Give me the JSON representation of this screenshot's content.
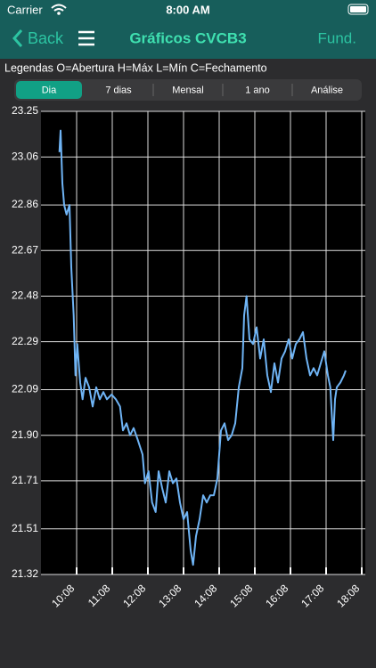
{
  "status": {
    "carrier": "Carrier",
    "time": "8:00 AM"
  },
  "nav": {
    "back": "Back",
    "title": "Gráficos CVCB3",
    "action": "Fund."
  },
  "legend_text": "Legendas O=Abertura H=Máx L=Mín C=Fechamento",
  "tabs": {
    "items": [
      "Dia",
      "7 dias",
      "Mensal",
      "1 ano",
      "Análise"
    ],
    "selected": 0
  },
  "chart_data": {
    "type": "line",
    "color": "#6fb4f5",
    "grid": true,
    "x": [
      "09:39",
      "09:41",
      "09:44",
      "09:47",
      "09:51",
      "09:56",
      "09:59",
      "10:03",
      "10:06",
      "10:09",
      "10:14",
      "10:18",
      "10:23",
      "10:29",
      "10:35",
      "10:41",
      "10:47",
      "10:53",
      "10:59",
      "11:07",
      "11:14",
      "11:21",
      "11:26",
      "11:32",
      "11:38",
      "11:44",
      "11:51",
      "11:59",
      "12:03",
      "12:09",
      "12:15",
      "12:21",
      "12:26",
      "12:32",
      "12:38",
      "12:44",
      "12:50",
      "12:56",
      "13:02",
      "13:08",
      "13:14",
      "13:20",
      "13:24",
      "13:29",
      "13:35",
      "13:41",
      "13:47",
      "13:53",
      "13:59",
      "14:05",
      "14:11",
      "14:17",
      "14:23",
      "14:29",
      "14:35",
      "14:41",
      "14:47",
      "14:50",
      "14:54",
      "14:59",
      "15:05",
      "15:11",
      "15:17",
      "15:23",
      "15:29",
      "15:35",
      "15:41",
      "15:47",
      "15:53",
      "15:59",
      "16:05",
      "16:11",
      "16:17",
      "16:23",
      "16:29",
      "16:35",
      "16:41",
      "16:47",
      "16:53",
      "16:59",
      "17:05",
      "17:11",
      "17:15",
      "17:20",
      "17:23",
      "17:26",
      "17:32",
      "17:38",
      "17:41"
    ],
    "values": [
      23.08,
      23.17,
      22.95,
      22.86,
      22.82,
      22.86,
      22.6,
      22.4,
      22.15,
      22.28,
      22.12,
      22.05,
      22.14,
      22.1,
      22.02,
      22.1,
      22.05,
      22.08,
      22.05,
      22.07,
      22.05,
      22.02,
      21.92,
      21.95,
      21.9,
      21.93,
      21.88,
      21.82,
      21.7,
      21.75,
      21.62,
      21.58,
      21.75,
      21.68,
      21.62,
      21.75,
      21.7,
      21.72,
      21.62,
      21.55,
      21.58,
      21.42,
      21.36,
      21.48,
      21.55,
      21.65,
      21.62,
      21.65,
      21.65,
      21.72,
      21.92,
      21.95,
      21.88,
      21.9,
      21.95,
      22.1,
      22.18,
      22.4,
      22.48,
      22.3,
      22.28,
      22.35,
      22.22,
      22.3,
      22.15,
      22.08,
      22.2,
      22.12,
      22.22,
      22.25,
      22.3,
      22.22,
      22.28,
      22.3,
      22.33,
      22.22,
      22.15,
      22.18,
      22.15,
      22.2,
      22.25,
      22.15,
      22.1,
      21.88,
      22.05,
      22.1,
      22.12,
      22.15,
      22.17
    ],
    "xlim": [
      "09:08",
      "18:14"
    ],
    "xticks": [
      "10:08",
      "11:08",
      "12:08",
      "13:08",
      "14:08",
      "15:08",
      "16:08",
      "17:08",
      "18:08"
    ],
    "ylim": [
      21.32,
      23.25
    ],
    "yticks": [
      23.25,
      23.06,
      22.86,
      22.67,
      22.48,
      22.29,
      22.09,
      {
        "value": 21.9,
        "label": "21.90"
      },
      21.71,
      21.51,
      21.32
    ]
  }
}
